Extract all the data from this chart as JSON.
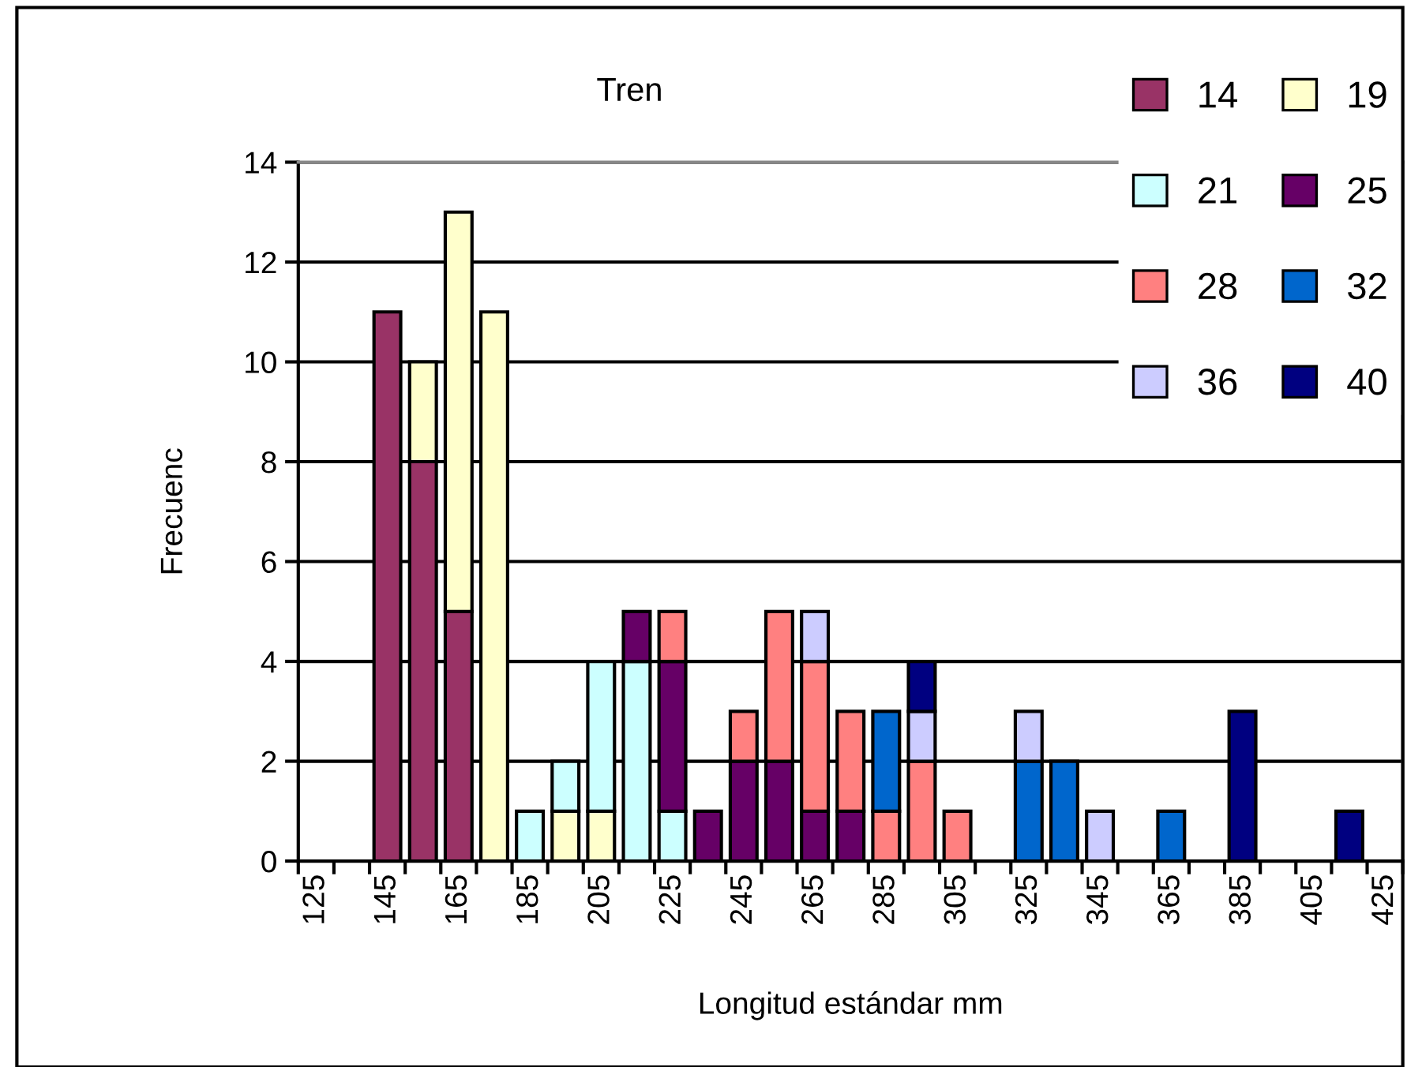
{
  "chart_data": {
    "type": "bar",
    "stacked": true,
    "title": "Tren",
    "xlabel": "Longitud estándar mm",
    "ylabel": "Frecuenc",
    "categories": [
      "125",
      null,
      "145",
      null,
      "165",
      null,
      "185",
      null,
      "205",
      null,
      "225",
      null,
      "245",
      null,
      "265",
      null,
      "285",
      null,
      "305",
      null,
      "325",
      null,
      "345",
      null,
      "365",
      null,
      "385",
      null,
      "405",
      null,
      "425"
    ],
    "ylim": [
      0,
      14
    ],
    "yticks": [
      0,
      2,
      4,
      6,
      8,
      10,
      12,
      14
    ],
    "grid": "y",
    "legend": "top right",
    "series": [
      {
        "name": "14",
        "color": "#993366",
        "values": [
          null,
          null,
          11,
          8,
          5,
          null,
          null,
          null,
          null,
          null,
          null,
          null,
          null,
          null,
          null,
          null,
          null,
          null,
          null,
          null,
          null,
          null,
          null,
          null,
          null,
          null,
          null,
          null,
          null,
          null,
          null
        ]
      },
      {
        "name": "19",
        "color": "#ffffcc",
        "values": [
          null,
          null,
          null,
          2,
          8,
          11,
          null,
          1,
          1,
          null,
          null,
          null,
          null,
          null,
          null,
          null,
          null,
          null,
          null,
          null,
          null,
          null,
          null,
          null,
          null,
          null,
          null,
          null,
          null,
          null,
          null
        ]
      },
      {
        "name": "21",
        "color": "#ccffff",
        "values": [
          null,
          null,
          null,
          null,
          null,
          null,
          1,
          1,
          3,
          4,
          1,
          null,
          null,
          null,
          null,
          null,
          null,
          null,
          null,
          null,
          null,
          null,
          null,
          null,
          null,
          null,
          null,
          null,
          null,
          null,
          null
        ]
      },
      {
        "name": "25",
        "color": "#660066",
        "values": [
          null,
          null,
          null,
          null,
          null,
          null,
          null,
          null,
          null,
          1,
          3,
          1,
          2,
          2,
          1,
          1,
          null,
          null,
          null,
          null,
          null,
          null,
          null,
          null,
          null,
          null,
          null,
          null,
          null,
          null,
          null
        ]
      },
      {
        "name": "28",
        "color": "#ff8080",
        "values": [
          null,
          null,
          null,
          null,
          null,
          null,
          null,
          null,
          null,
          null,
          1,
          null,
          1,
          3,
          3,
          2,
          1,
          2,
          1,
          null,
          null,
          null,
          null,
          null,
          null,
          null,
          null,
          null,
          null,
          null,
          null
        ]
      },
      {
        "name": "32",
        "color": "#0066cc",
        "values": [
          null,
          null,
          null,
          null,
          null,
          null,
          null,
          null,
          null,
          null,
          null,
          null,
          null,
          null,
          null,
          null,
          2,
          null,
          null,
          null,
          2,
          2,
          null,
          null,
          1,
          null,
          null,
          null,
          null,
          null,
          null
        ]
      },
      {
        "name": "36",
        "color": "#ccccff",
        "values": [
          null,
          null,
          null,
          null,
          null,
          null,
          null,
          null,
          null,
          null,
          null,
          null,
          null,
          null,
          1,
          null,
          null,
          1,
          null,
          null,
          1,
          null,
          1,
          null,
          null,
          null,
          null,
          null,
          null,
          null,
          null
        ]
      },
      {
        "name": "40",
        "color": "#000080",
        "values": [
          null,
          null,
          null,
          null,
          null,
          null,
          null,
          null,
          null,
          null,
          null,
          null,
          null,
          null,
          null,
          null,
          null,
          1,
          null,
          null,
          null,
          null,
          null,
          null,
          null,
          null,
          3,
          null,
          null,
          1,
          null
        ]
      }
    ]
  }
}
